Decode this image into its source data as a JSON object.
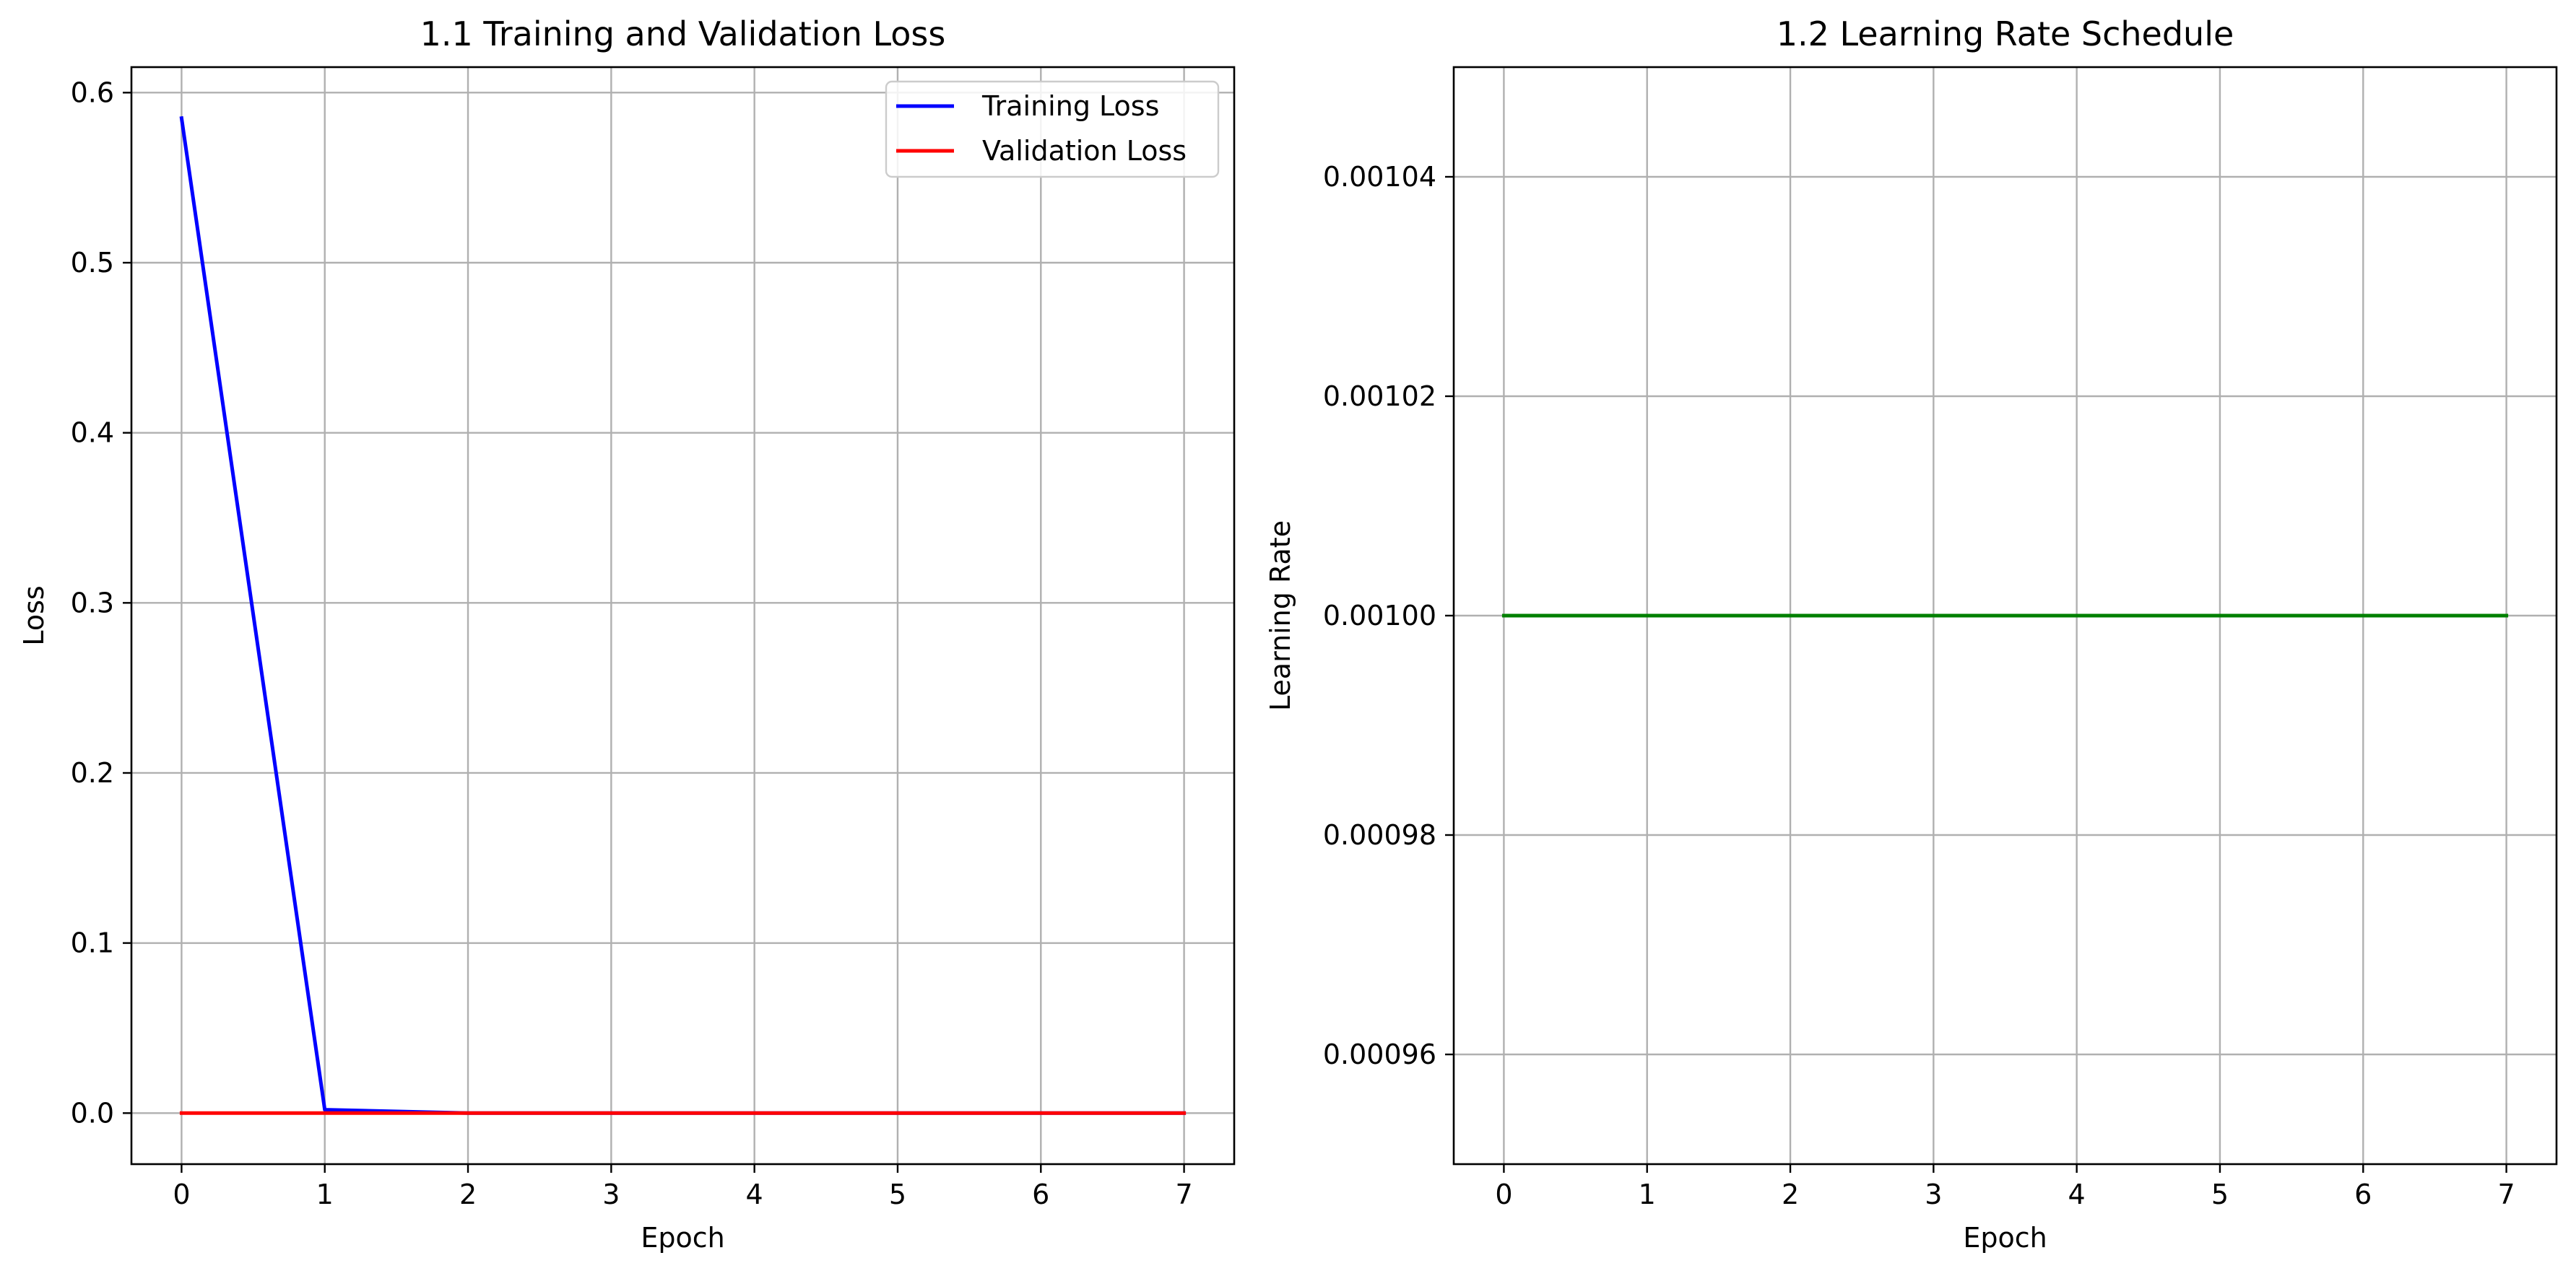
{
  "chart_data": [
    {
      "type": "line",
      "title": "1.1 Training and Validation Loss",
      "xlabel": "Epoch",
      "ylabel": "Loss",
      "xlim": [
        -0.35,
        7.35
      ],
      "ylim": [
        -0.03,
        0.615
      ],
      "xticks": [
        0,
        1,
        2,
        3,
        4,
        5,
        6,
        7
      ],
      "yticks": [
        0.0,
        0.1,
        0.2,
        0.3,
        0.4,
        0.5,
        0.6
      ],
      "ytick_labels": [
        "0.0",
        "0.1",
        "0.2",
        "0.3",
        "0.4",
        "0.5",
        "0.6"
      ],
      "grid": true,
      "legend": "top-right",
      "x": [
        0,
        1,
        2,
        3,
        4,
        5,
        6,
        7
      ],
      "series": [
        {
          "name": "Training Loss",
          "color": "#0000ff",
          "values": [
            0.585,
            0.002,
            0.0,
            0.0,
            0.0,
            0.0,
            0.0,
            0.0
          ]
        },
        {
          "name": "Validation Loss",
          "color": "#ff0000",
          "values": [
            0.0,
            0.0,
            0.0,
            0.0,
            0.0,
            0.0,
            0.0,
            0.0
          ]
        }
      ]
    },
    {
      "type": "line",
      "title": "1.2 Learning Rate Schedule",
      "xlabel": "Epoch",
      "ylabel": "Learning Rate",
      "xlim": [
        -0.35,
        7.35
      ],
      "ylim": [
        0.00095,
        0.00105
      ],
      "xticks": [
        0,
        1,
        2,
        3,
        4,
        5,
        6,
        7
      ],
      "yticks": [
        0.00096,
        0.00098,
        0.001,
        0.00102,
        0.00104
      ],
      "ytick_labels": [
        "0.00096",
        "0.00098",
        "0.00100",
        "0.00102",
        "0.00104"
      ],
      "grid": true,
      "x": [
        0,
        1,
        2,
        3,
        4,
        5,
        6,
        7
      ],
      "series": [
        {
          "color": "#008000",
          "values": [
            0.001,
            0.001,
            0.001,
            0.001,
            0.001,
            0.001,
            0.001,
            0.001
          ]
        }
      ]
    }
  ]
}
